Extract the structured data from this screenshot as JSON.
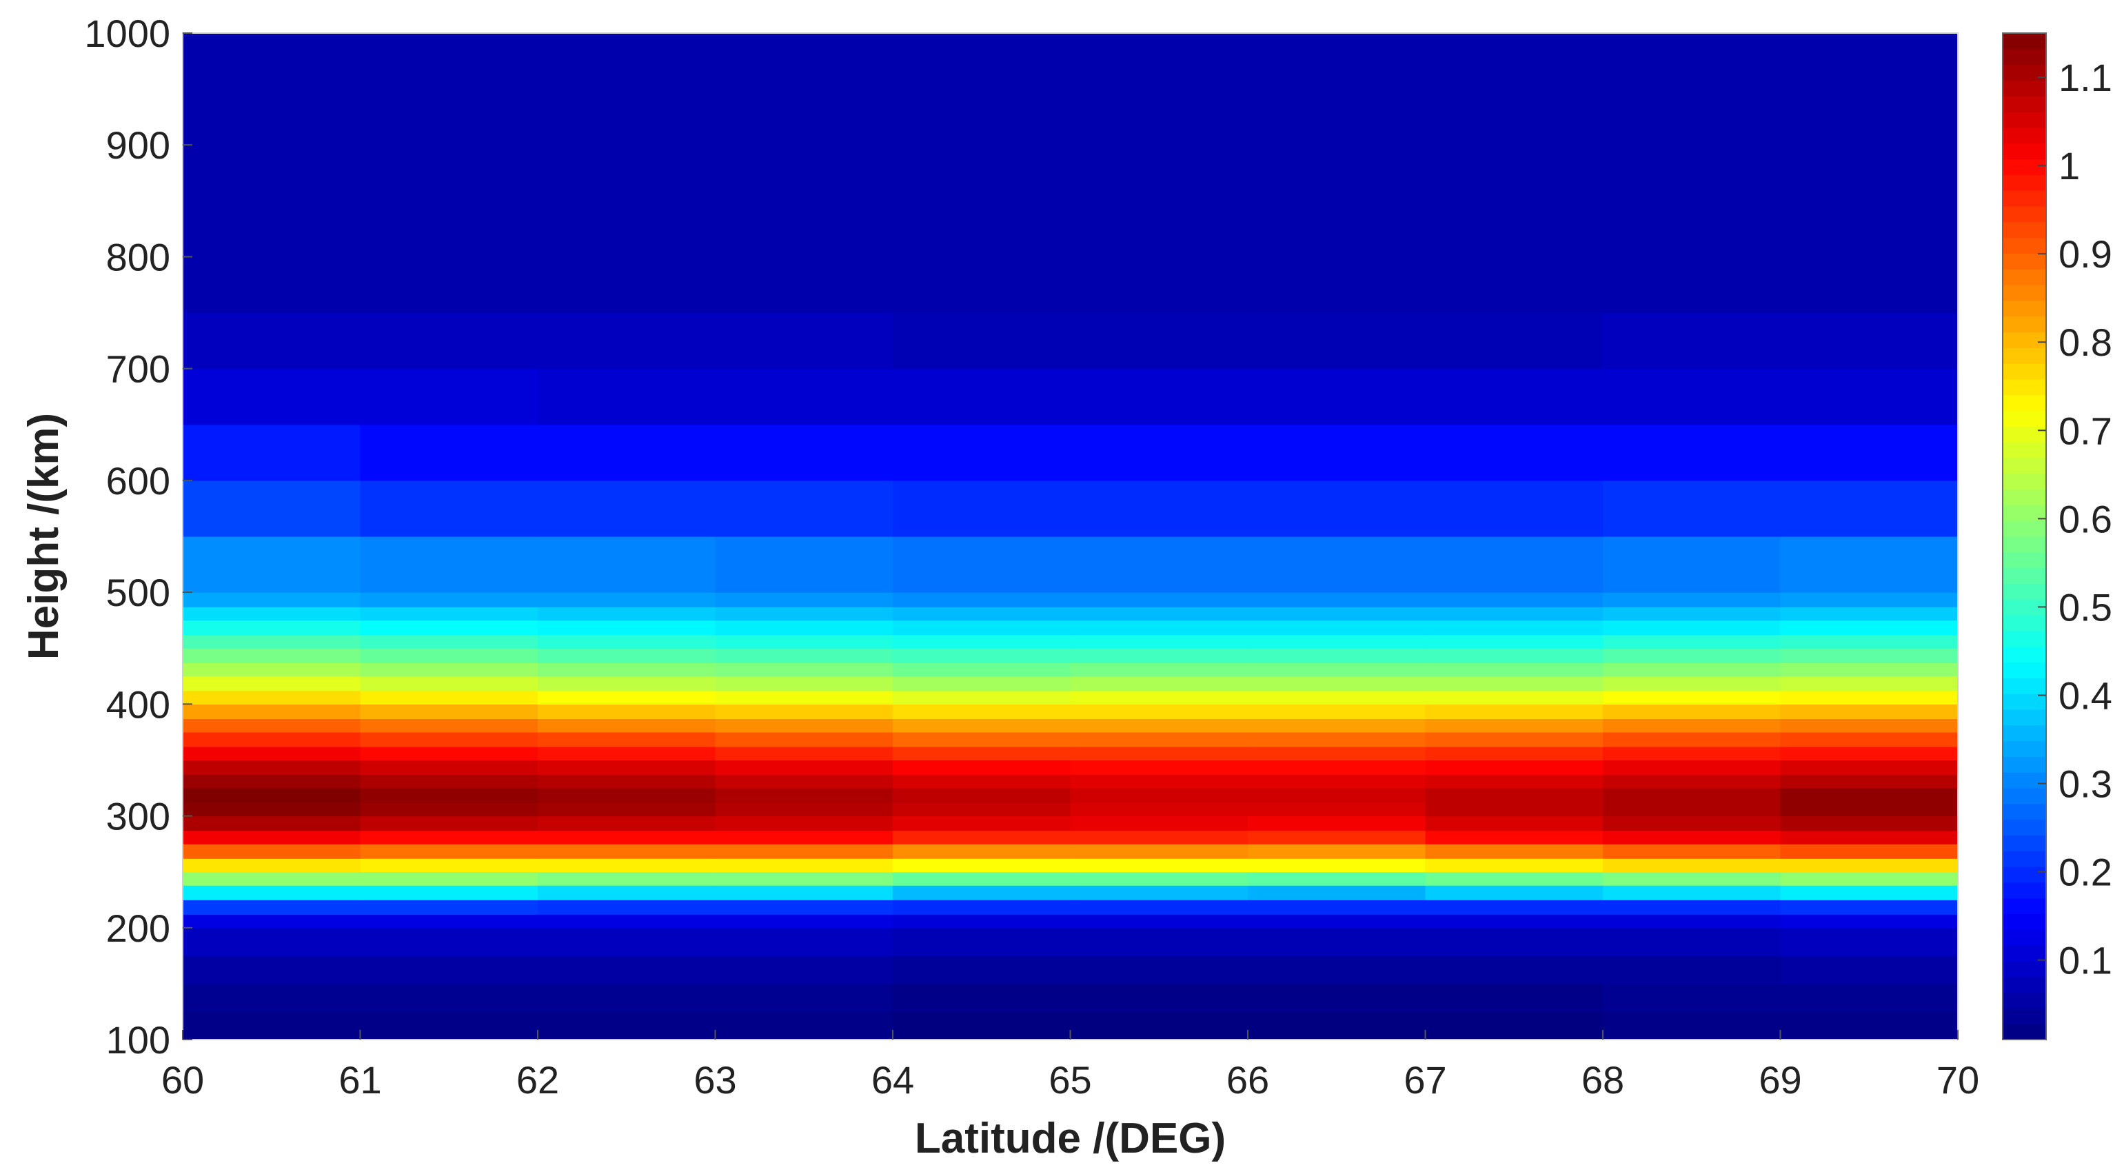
{
  "chart_data": {
    "type": "heatmap",
    "title": "",
    "xlabel": "Latitude /(DEG)",
    "ylabel": "Height /(km)",
    "xlim": [
      60,
      70
    ],
    "ylim": [
      100,
      1000
    ],
    "x_ticks": [
      "60",
      "61",
      "62",
      "63",
      "64",
      "65",
      "66",
      "67",
      "68",
      "69",
      "70"
    ],
    "y_ticks": [
      "100",
      "200",
      "300",
      "400",
      "500",
      "600",
      "700",
      "800",
      "900",
      "1000"
    ],
    "colorbar": {
      "colormap": "jet",
      "range": [
        0.01,
        1.15
      ],
      "ticks": [
        "0.1",
        "0.2",
        "0.3",
        "0.4",
        "0.5",
        "0.6",
        "0.7",
        "0.8",
        "0.9",
        "1",
        "1.1"
      ]
    },
    "x_bins": [
      60,
      61,
      62,
      63,
      64,
      65,
      66,
      67,
      68,
      69,
      70
    ],
    "height_levels": [
      100,
      125,
      150,
      175,
      200,
      212,
      225,
      238,
      250,
      262,
      275,
      287,
      300,
      312,
      325,
      337,
      350,
      362,
      375,
      387,
      400,
      412,
      425,
      437,
      450,
      462,
      475,
      487,
      500,
      550,
      600,
      650,
      700,
      750,
      1000
    ],
    "values": [
      [
        0.02,
        0.02,
        0.02,
        0.02,
        0.01,
        0.01,
        0.01,
        0.01,
        0.02,
        0.02
      ],
      [
        0.03,
        0.03,
        0.03,
        0.03,
        0.02,
        0.02,
        0.02,
        0.02,
        0.03,
        0.03
      ],
      [
        0.05,
        0.05,
        0.05,
        0.05,
        0.04,
        0.04,
        0.04,
        0.04,
        0.04,
        0.05
      ],
      [
        0.08,
        0.08,
        0.08,
        0.08,
        0.07,
        0.07,
        0.07,
        0.07,
        0.07,
        0.08
      ],
      [
        0.12,
        0.12,
        0.12,
        0.12,
        0.11,
        0.11,
        0.11,
        0.11,
        0.11,
        0.12
      ],
      [
        0.22,
        0.22,
        0.21,
        0.21,
        0.2,
        0.2,
        0.2,
        0.2,
        0.2,
        0.21
      ],
      [
        0.42,
        0.42,
        0.4,
        0.4,
        0.36,
        0.36,
        0.35,
        0.38,
        0.4,
        0.42
      ],
      [
        0.6,
        0.6,
        0.58,
        0.58,
        0.55,
        0.55,
        0.54,
        0.56,
        0.58,
        0.6
      ],
      [
        0.75,
        0.74,
        0.74,
        0.74,
        0.72,
        0.72,
        0.72,
        0.74,
        0.76,
        0.76
      ],
      [
        0.9,
        0.88,
        0.88,
        0.88,
        0.85,
        0.85,
        0.84,
        0.87,
        0.9,
        0.92
      ],
      [
        1.02,
        1.0,
        1.0,
        1.0,
        0.97,
        0.97,
        0.96,
        1.0,
        1.02,
        1.04
      ],
      [
        1.1,
        1.08,
        1.07,
        1.06,
        1.04,
        1.03,
        1.02,
        1.05,
        1.08,
        1.1
      ],
      [
        1.14,
        1.12,
        1.11,
        1.09,
        1.07,
        1.05,
        1.05,
        1.08,
        1.1,
        1.13
      ],
      [
        1.15,
        1.13,
        1.12,
        1.1,
        1.08,
        1.06,
        1.06,
        1.08,
        1.1,
        1.13
      ],
      [
        1.12,
        1.1,
        1.09,
        1.07,
        1.05,
        1.04,
        1.04,
        1.05,
        1.07,
        1.09
      ],
      [
        1.08,
        1.06,
        1.05,
        1.03,
        1.01,
        1.0,
        1.0,
        1.01,
        1.03,
        1.05
      ],
      [
        1.02,
        1.0,
        0.99,
        0.97,
        0.95,
        0.95,
        0.95,
        0.96,
        0.98,
        0.99
      ],
      [
        0.96,
        0.94,
        0.93,
        0.91,
        0.89,
        0.89,
        0.89,
        0.9,
        0.92,
        0.93
      ],
      [
        0.9,
        0.88,
        0.86,
        0.85,
        0.83,
        0.83,
        0.83,
        0.84,
        0.86,
        0.87
      ],
      [
        0.83,
        0.81,
        0.79,
        0.78,
        0.76,
        0.76,
        0.76,
        0.77,
        0.79,
        0.8
      ],
      [
        0.76,
        0.74,
        0.72,
        0.71,
        0.69,
        0.7,
        0.7,
        0.7,
        0.72,
        0.73
      ],
      [
        0.69,
        0.67,
        0.65,
        0.64,
        0.62,
        0.63,
        0.63,
        0.63,
        0.65,
        0.66
      ],
      [
        0.63,
        0.61,
        0.59,
        0.58,
        0.56,
        0.57,
        0.57,
        0.57,
        0.59,
        0.6
      ],
      [
        0.57,
        0.55,
        0.53,
        0.52,
        0.51,
        0.51,
        0.51,
        0.51,
        0.53,
        0.54
      ],
      [
        0.52,
        0.5,
        0.48,
        0.47,
        0.46,
        0.46,
        0.46,
        0.46,
        0.48,
        0.49
      ],
      [
        0.46,
        0.44,
        0.43,
        0.42,
        0.41,
        0.41,
        0.41,
        0.41,
        0.42,
        0.43
      ],
      [
        0.4,
        0.39,
        0.38,
        0.37,
        0.36,
        0.36,
        0.36,
        0.36,
        0.37,
        0.38
      ],
      [
        0.34,
        0.33,
        0.33,
        0.32,
        0.31,
        0.31,
        0.31,
        0.31,
        0.32,
        0.33
      ],
      [
        0.31,
        0.3,
        0.3,
        0.29,
        0.28,
        0.28,
        0.28,
        0.28,
        0.29,
        0.3
      ],
      [
        0.23,
        0.21,
        0.21,
        0.21,
        0.2,
        0.2,
        0.2,
        0.2,
        0.21,
        0.21
      ],
      [
        0.18,
        0.16,
        0.16,
        0.16,
        0.16,
        0.16,
        0.16,
        0.16,
        0.16,
        0.16
      ],
      [
        0.11,
        0.11,
        0.1,
        0.1,
        0.1,
        0.1,
        0.1,
        0.1,
        0.1,
        0.1
      ],
      [
        0.08,
        0.08,
        0.08,
        0.08,
        0.07,
        0.07,
        0.07,
        0.07,
        0.08,
        0.08
      ],
      [
        0.06,
        0.06,
        0.06,
        0.06,
        0.06,
        0.06,
        0.06,
        0.06,
        0.06,
        0.06
      ]
    ]
  }
}
